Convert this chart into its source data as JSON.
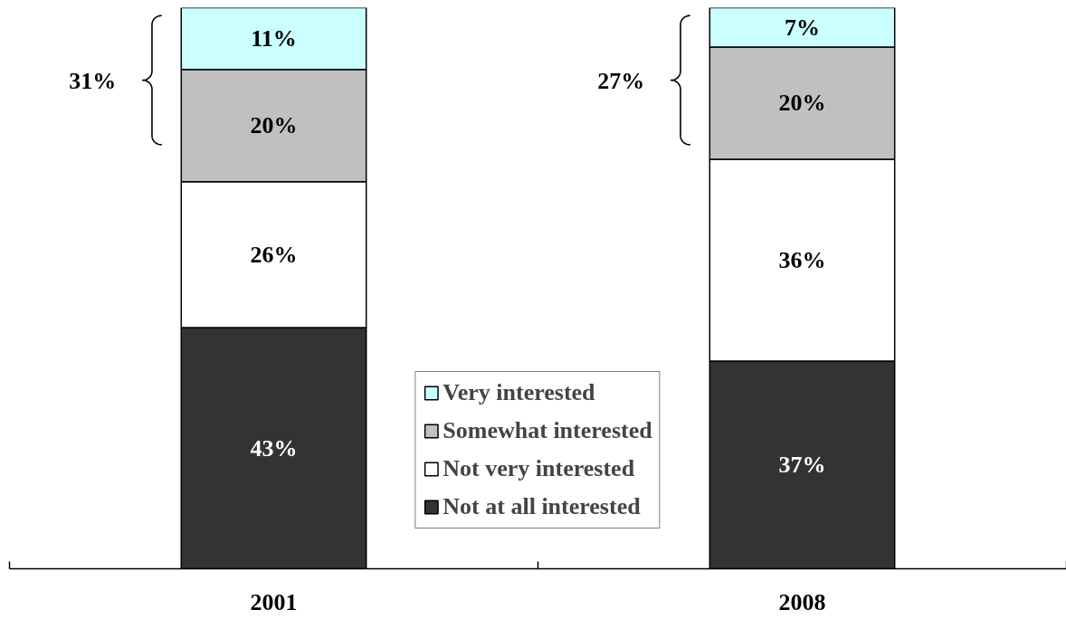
{
  "chart_data": {
    "type": "bar",
    "stacked": true,
    "categories": [
      "2001",
      "2008"
    ],
    "series": [
      {
        "name": "Not at all interested",
        "color": "#333333",
        "values": [
          43,
          37
        ],
        "value_labels": [
          "43%",
          "37%"
        ]
      },
      {
        "name": "Not very interested",
        "color": "#ffffff",
        "values": [
          26,
          36
        ],
        "value_labels": [
          "26%",
          "36%"
        ]
      },
      {
        "name": "Somewhat interested",
        "color": "#c0c0c0",
        "values": [
          20,
          20
        ],
        "value_labels": [
          "20%",
          "20%"
        ]
      },
      {
        "name": "Very interested",
        "color": "#ccffff",
        "values": [
          11,
          7
        ],
        "value_labels": [
          "11%",
          "7%"
        ]
      }
    ],
    "annotations": [
      "31%",
      "27%"
    ],
    "legend": "bottom",
    "tick_labels": "x"
  }
}
